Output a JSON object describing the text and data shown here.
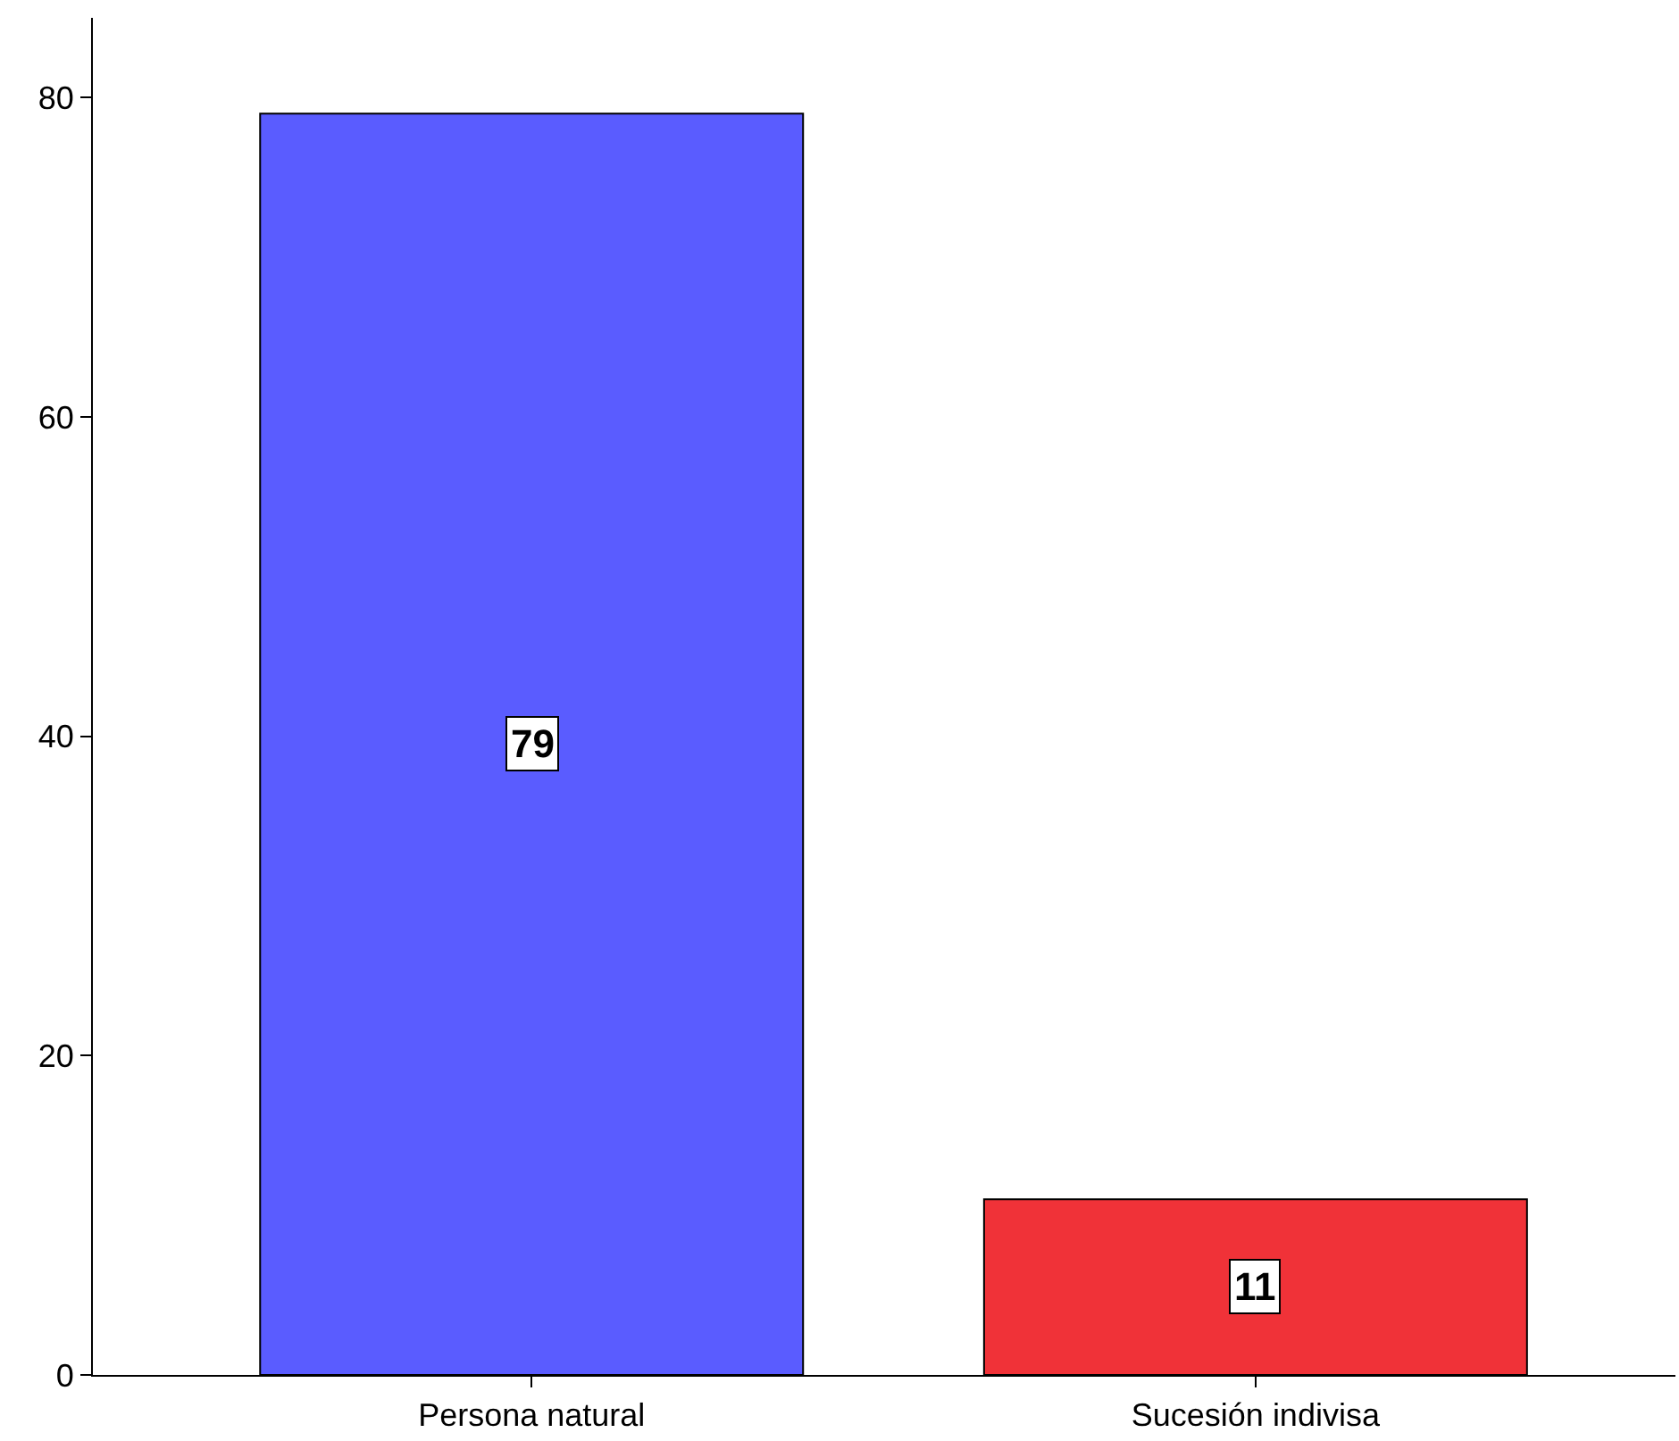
{
  "chart_data": {
    "type": "bar",
    "categories": [
      "Persona natural",
      "Sucesión indivisa"
    ],
    "values": [
      79,
      11
    ],
    "colors": [
      "#5a5cff",
      "#f03238"
    ],
    "ylim": [
      0,
      85
    ],
    "yticks": [
      0,
      20,
      40,
      60,
      80
    ],
    "data_labels": true
  }
}
